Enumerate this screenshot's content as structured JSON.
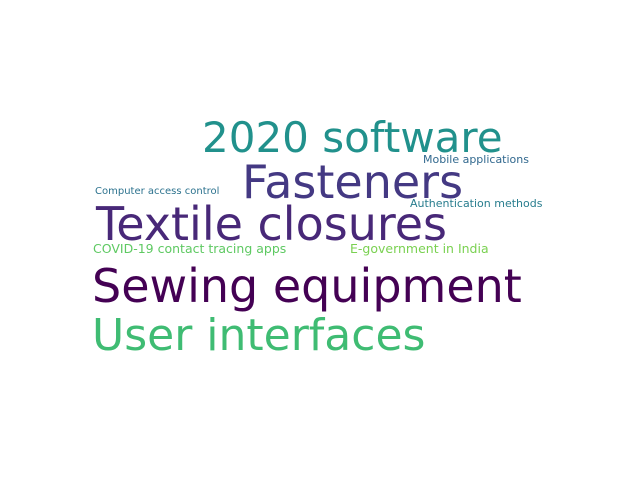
{
  "words": [
    {
      "id": "w-software",
      "text": "2020 software",
      "color": "#21918c"
    },
    {
      "id": "w-fasteners",
      "text": "Fasteners",
      "color": "#443983"
    },
    {
      "id": "w-textile",
      "text": "Textile closures",
      "color": "#482878"
    },
    {
      "id": "w-sewing",
      "text": "Sewing equipment",
      "color": "#440154"
    },
    {
      "id": "w-ui",
      "text": "User interfaces",
      "color": "#3fbc73"
    },
    {
      "id": "w-mobile",
      "text": "Mobile applications",
      "color": "#31688e"
    },
    {
      "id": "w-cac",
      "text": "Computer access control",
      "color": "#2c728e"
    },
    {
      "id": "w-auth",
      "text": "Authentication methods",
      "color": "#287d8e"
    },
    {
      "id": "w-covid",
      "text": "COVID-19 contact tracing apps",
      "color": "#5ec962"
    },
    {
      "id": "w-egov",
      "text": "E-government in India",
      "color": "#7ad151"
    }
  ]
}
